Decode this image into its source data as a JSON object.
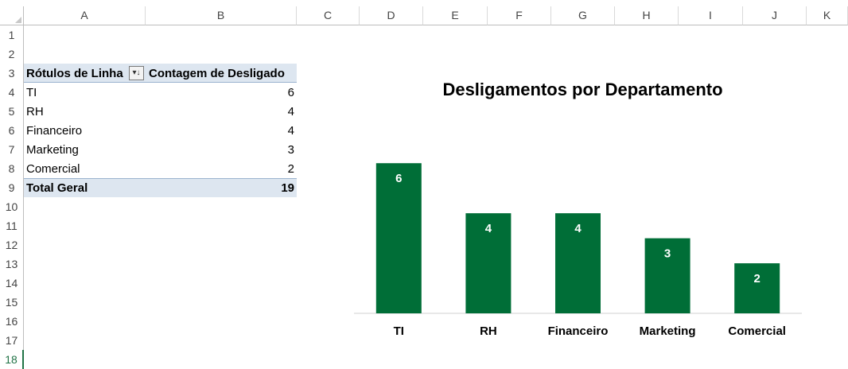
{
  "spreadsheet": {
    "columns": [
      "A",
      "B",
      "C",
      "D",
      "E",
      "F",
      "G",
      "H",
      "I",
      "J",
      "K"
    ],
    "rows": [
      "1",
      "2",
      "3",
      "4",
      "5",
      "6",
      "7",
      "8",
      "9",
      "10",
      "11",
      "12",
      "13",
      "14",
      "15",
      "16",
      "17",
      "18"
    ],
    "selected_row": "18"
  },
  "pivot": {
    "header_label": "Rótulos de Linha",
    "header_value": "Contagem de Desligado",
    "filter_icon": "sort-filter-icon",
    "rows": [
      {
        "label": "TI",
        "value": "6"
      },
      {
        "label": "RH",
        "value": "4"
      },
      {
        "label": "Financeiro",
        "value": "4"
      },
      {
        "label": "Marketing",
        "value": "3"
      },
      {
        "label": "Comercial",
        "value": "2"
      }
    ],
    "total_label": "Total Geral",
    "total_value": "19"
  },
  "chart_data": {
    "type": "bar",
    "title": "Desligamentos por Departamento",
    "categories": [
      "TI",
      "RH",
      "Financeiro",
      "Marketing",
      "Comercial"
    ],
    "values": [
      6,
      4,
      4,
      3,
      2
    ],
    "data_labels": [
      "6",
      "4",
      "4",
      "3",
      "2"
    ],
    "ylim": [
      0,
      7.5
    ],
    "grid": false,
    "legend": "none",
    "bar_color": "#006e37",
    "label_color": "#ffffff"
  }
}
